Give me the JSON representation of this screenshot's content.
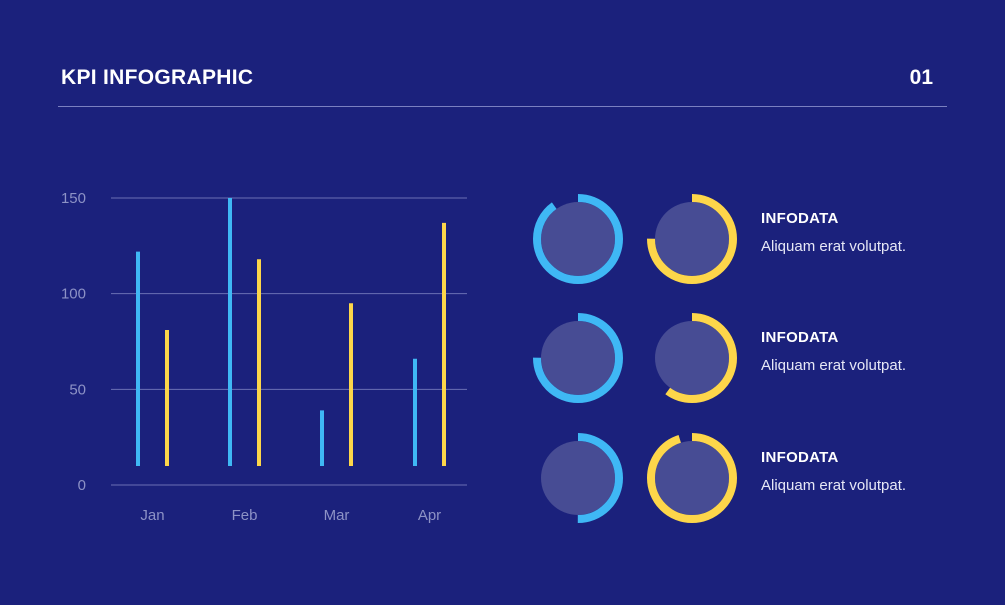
{
  "header": {
    "title": "KPI INFOGRAPHIC",
    "page_number": "01"
  },
  "colors": {
    "background": "#1b217c",
    "series_blue": "#3fb8f5",
    "series_yellow": "#fdd64a",
    "gauge_fill": "#474c94",
    "grid": "#6b70b4",
    "axis_text": "#8d92c6"
  },
  "chart_data": {
    "type": "bar",
    "categories": [
      "Jan",
      "Feb",
      "Mar",
      "Apr"
    ],
    "series": [
      {
        "values": [
          122,
          150,
          39,
          66
        ],
        "color": "#3fb8f5"
      },
      {
        "values": [
          81,
          118,
          95,
          137
        ],
        "color": "#fdd64a"
      }
    ],
    "ylim": [
      0,
      150
    ],
    "yticks": [
      "150",
      "100",
      "50",
      "0"
    ],
    "grid": true,
    "title": "",
    "xlabel": "",
    "ylabel": ""
  },
  "kpis": [
    {
      "title": "INFODATA",
      "description": "Aliquam erat volutpat.",
      "gauges": [
        {
          "color": "#3fb8f5",
          "percent": 90
        },
        {
          "color": "#fdd64a",
          "percent": 75
        }
      ]
    },
    {
      "title": "INFODATA",
      "description": "Aliquam erat volutpat.",
      "gauges": [
        {
          "color": "#3fb8f5",
          "percent": 75
        },
        {
          "color": "#fdd64a",
          "percent": 60
        }
      ]
    },
    {
      "title": "INFODATA",
      "description": "Aliquam erat volutpat.",
      "gauges": [
        {
          "color": "#3fb8f5",
          "percent": 50
        },
        {
          "color": "#fdd64a",
          "percent": 95
        }
      ]
    }
  ]
}
